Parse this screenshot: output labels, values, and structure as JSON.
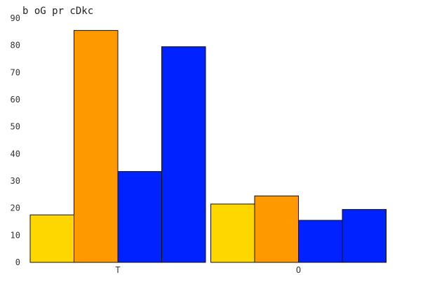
{
  "chart_data": {
    "type": "bar",
    "title": "b oG pr cDkc",
    "categories": [
      "T",
      "O"
    ],
    "series": [
      {
        "color": "#FFD700",
        "values": [
          17.5,
          21.5
        ]
      },
      {
        "color": "#FF9900",
        "values": [
          85.5,
          24.5
        ]
      },
      {
        "color": "#0022FF",
        "values": [
          33.5,
          15.5
        ]
      },
      {
        "color": "#0022FF",
        "values": [
          79.5,
          19.5
        ]
      }
    ],
    "ylim": [
      0,
      90
    ],
    "yticks": [
      0,
      10,
      20,
      30,
      40,
      50,
      60,
      70,
      80,
      90
    ],
    "grid": false,
    "legend": "none"
  }
}
